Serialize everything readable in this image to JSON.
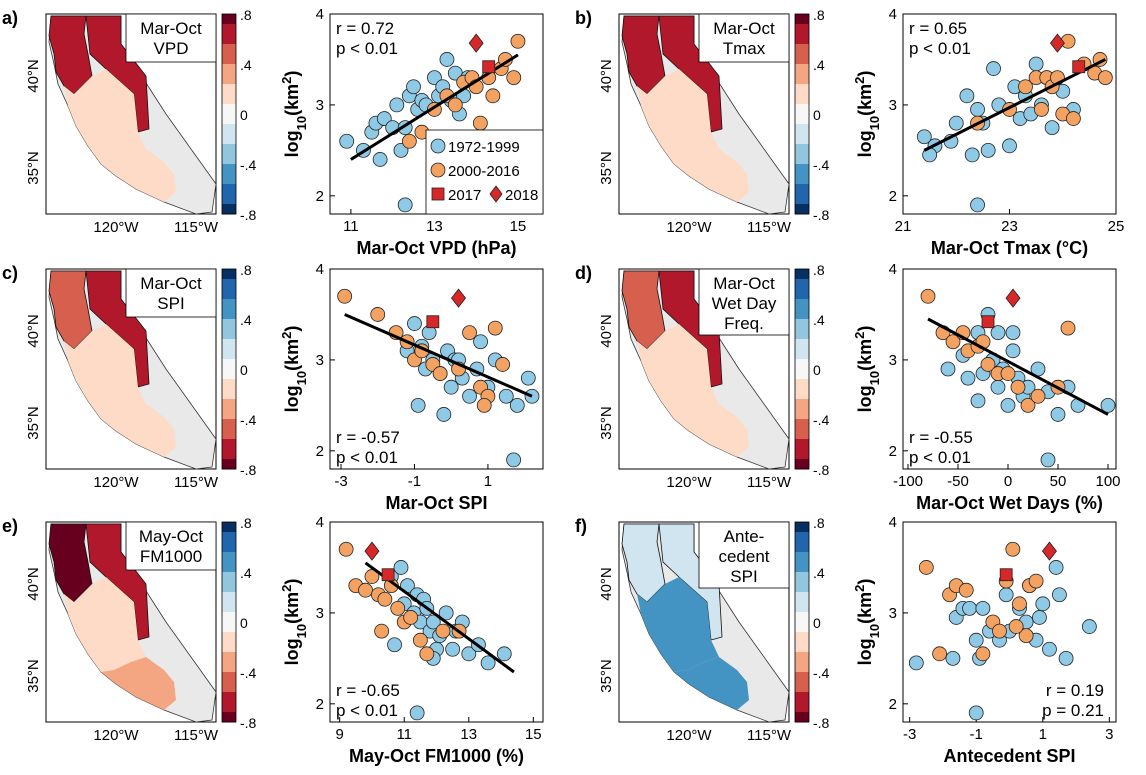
{
  "colorbar": {
    "tick_labels": [
      ".8",
      ".4",
      "0",
      "-.4",
      "-.8"
    ],
    "warm_positive": [
      "#67001f",
      "#b2182b",
      "#d6604d",
      "#f4a582",
      "#fddbc7",
      "#f7f7f7",
      "#d1e5f0",
      "#92c5de",
      "#4393c3",
      "#2166ac",
      "#053061"
    ]
  },
  "map_axes": {
    "x_ticks": [
      "120°W",
      "115°W"
    ],
    "y_ticks": [
      "40°N",
      "35°N"
    ]
  },
  "legend": {
    "entries": [
      {
        "label": "1972-1999",
        "marker": "circle",
        "color": "#8ecae6"
      },
      {
        "label": "2000-2016",
        "marker": "circle",
        "color": "#f4a261"
      },
      {
        "label": "2017",
        "marker": "square",
        "color": "#d62828"
      },
      {
        "label": "2018",
        "marker": "diamond",
        "color": "#d62828"
      }
    ]
  },
  "chart_data": [
    {
      "panel": "a)",
      "type": "scatter",
      "colorbar_positive": "warm",
      "map_title": [
        "Mar-Oct",
        "VPD"
      ],
      "map_corr": {
        "north_coast": 0.62,
        "sierra": 0.72,
        "central_coast": 0.22,
        "south_coast": 0.2
      },
      "xlabel": "Mar-Oct VPD (hPa)",
      "ylabel": "log10(km2)",
      "xlim": [
        10.5,
        15.6
      ],
      "ylim": [
        1.8,
        4.0
      ],
      "xticks": [
        11,
        13,
        15
      ],
      "yticks": [
        2,
        3,
        4
      ],
      "stats": [
        "r = 0.72",
        "p < 0.01"
      ],
      "stats_pos": "top-left",
      "show_legend": true,
      "fit": [
        [
          11.0,
          2.4
        ],
        [
          15.0,
          3.55
        ]
      ],
      "series1": [
        [
          10.9,
          2.6
        ],
        [
          11.3,
          2.5
        ],
        [
          11.5,
          2.7
        ],
        [
          11.6,
          2.8
        ],
        [
          11.8,
          2.85
        ],
        [
          12.0,
          2.75
        ],
        [
          12.1,
          3.0
        ],
        [
          12.2,
          2.5
        ],
        [
          12.3,
          2.75
        ],
        [
          12.4,
          3.1
        ],
        [
          12.5,
          3.2
        ],
        [
          12.6,
          2.95
        ],
        [
          12.7,
          3.05
        ],
        [
          12.8,
          3.0
        ],
        [
          13.0,
          3.3
        ],
        [
          13.1,
          3.1
        ],
        [
          13.2,
          3.2
        ],
        [
          13.3,
          3.5
        ],
        [
          13.4,
          3.05
        ],
        [
          13.5,
          3.35
        ],
        [
          13.6,
          2.9
        ],
        [
          13.7,
          3.1
        ],
        [
          13.8,
          3.3
        ],
        [
          12.3,
          1.9
        ],
        [
          11.7,
          2.4
        ]
      ],
      "series2": [
        [
          12.4,
          2.6
        ],
        [
          12.7,
          2.7
        ],
        [
          13.0,
          2.95
        ],
        [
          13.3,
          3.1
        ],
        [
          13.5,
          3.0
        ],
        [
          13.7,
          3.25
        ],
        [
          13.9,
          3.3
        ],
        [
          14.0,
          3.2
        ],
        [
          14.1,
          2.8
        ],
        [
          14.3,
          3.3
        ],
        [
          14.4,
          3.1
        ],
        [
          14.6,
          3.4
        ],
        [
          14.7,
          3.5
        ],
        [
          15.0,
          3.7
        ],
        [
          14.9,
          3.3
        ]
      ],
      "red2017": [
        14.3,
        3.42
      ],
      "red2018": [
        14.0,
        3.68
      ]
    },
    {
      "panel": "b)",
      "type": "scatter",
      "colorbar_positive": "warm",
      "map_title": [
        "Mar-Oct",
        "Tmax"
      ],
      "map_corr": {
        "north_coast": 0.58,
        "sierra": 0.68,
        "central_coast": 0.22,
        "south_coast": 0.2
      },
      "xlabel": "Mar-Oct Tmax (°C)",
      "ylabel": "log10(km2)",
      "xlim": [
        21,
        25
      ],
      "ylim": [
        1.8,
        4.0
      ],
      "xticks": [
        21,
        23,
        25
      ],
      "yticks": [
        2,
        3,
        4
      ],
      "stats": [
        "r = 0.65",
        "p < 0.01"
      ],
      "stats_pos": "top-left",
      "show_legend": false,
      "fit": [
        [
          21.4,
          2.5
        ],
        [
          24.8,
          3.5
        ]
      ],
      "series1": [
        [
          21.4,
          2.65
        ],
        [
          21.6,
          2.55
        ],
        [
          21.9,
          2.6
        ],
        [
          22.0,
          2.8
        ],
        [
          22.2,
          3.1
        ],
        [
          22.3,
          2.45
        ],
        [
          22.4,
          2.95
        ],
        [
          22.5,
          2.8
        ],
        [
          22.6,
          2.5
        ],
        [
          22.7,
          3.4
        ],
        [
          22.8,
          3.0
        ],
        [
          23.0,
          2.55
        ],
        [
          23.1,
          3.2
        ],
        [
          23.2,
          2.85
        ],
        [
          23.3,
          3.1
        ],
        [
          23.4,
          2.9
        ],
        [
          23.5,
          3.45
        ],
        [
          23.6,
          3.0
        ],
        [
          23.7,
          3.3
        ],
        [
          23.8,
          2.75
        ],
        [
          24.0,
          3.15
        ],
        [
          24.2,
          2.95
        ],
        [
          22.4,
          1.9
        ],
        [
          21.5,
          2.45
        ]
      ],
      "series2": [
        [
          22.4,
          2.8
        ],
        [
          23.0,
          2.95
        ],
        [
          23.3,
          3.2
        ],
        [
          23.5,
          3.3
        ],
        [
          23.6,
          2.95
        ],
        [
          23.7,
          3.3
        ],
        [
          23.8,
          3.2
        ],
        [
          23.9,
          3.3
        ],
        [
          24.0,
          2.9
        ],
        [
          24.1,
          3.7
        ],
        [
          24.2,
          2.85
        ],
        [
          24.4,
          3.45
        ],
        [
          24.6,
          3.35
        ],
        [
          24.7,
          3.5
        ],
        [
          24.8,
          3.3
        ]
      ],
      "red2017": [
        24.3,
        3.42
      ],
      "red2018": [
        23.9,
        3.68
      ]
    },
    {
      "panel": "c)",
      "type": "scatter",
      "colorbar_positive": "cool",
      "map_title": [
        "Mar-Oct",
        "SPI"
      ],
      "map_corr": {
        "north_coast": -0.5,
        "sierra": -0.6,
        "central_coast": -0.2,
        "south_coast": -0.2
      },
      "xlabel": "Mar-Oct SPI",
      "ylabel": "log10(km2)",
      "xlim": [
        -3.3,
        2.5
      ],
      "ylim": [
        1.8,
        4.0
      ],
      "xticks": [
        -3,
        -1,
        1,
        3
      ],
      "yticks": [
        2,
        3,
        4
      ],
      "stats": [
        "r = -0.57",
        "p < 0.01"
      ],
      "stats_pos": "bottom-left",
      "show_legend": false,
      "fit": [
        [
          -2.9,
          3.5
        ],
        [
          2.2,
          2.6
        ]
      ],
      "series1": [
        [
          -1.2,
          3.1
        ],
        [
          -1.0,
          3.4
        ],
        [
          -0.8,
          3.15
        ],
        [
          -0.7,
          2.9
        ],
        [
          -0.6,
          3.3
        ],
        [
          -0.5,
          3.0
        ],
        [
          -0.3,
          2.85
        ],
        [
          -0.1,
          3.1
        ],
        [
          0.0,
          2.7
        ],
        [
          0.1,
          3.0
        ],
        [
          0.3,
          2.8
        ],
        [
          0.5,
          2.6
        ],
        [
          0.7,
          2.9
        ],
        [
          0.8,
          3.2
        ],
        [
          1.0,
          2.7
        ],
        [
          1.2,
          3.0
        ],
        [
          1.5,
          2.6
        ],
        [
          1.8,
          2.5
        ],
        [
          2.1,
          2.8
        ],
        [
          2.2,
          2.6
        ],
        [
          -0.9,
          2.5
        ],
        [
          1.7,
          1.9
        ],
        [
          0.2,
          3.0
        ],
        [
          -0.2,
          2.4
        ]
      ],
      "series2": [
        [
          -2.9,
          3.7
        ],
        [
          -2.0,
          3.5
        ],
        [
          -1.5,
          3.3
        ],
        [
          -1.2,
          3.2
        ],
        [
          -1.0,
          3.0
        ],
        [
          -0.8,
          3.1
        ],
        [
          -0.5,
          2.95
        ],
        [
          -0.3,
          2.85
        ],
        [
          0.2,
          2.9
        ],
        [
          0.5,
          3.3
        ],
        [
          0.8,
          2.7
        ],
        [
          1.0,
          2.6
        ],
        [
          1.2,
          3.35
        ],
        [
          1.4,
          2.95
        ],
        [
          0.9,
          2.5
        ]
      ],
      "red2017": [
        -0.5,
        3.42
      ],
      "red2018": [
        0.2,
        3.68
      ]
    },
    {
      "panel": "d)",
      "type": "scatter",
      "colorbar_positive": "cool",
      "map_title": [
        "Mar-Oct",
        "Wet Day",
        "Freq."
      ],
      "map_corr": {
        "north_coast": -0.55,
        "sierra": -0.62,
        "central_coast": -0.2,
        "south_coast": -0.2
      },
      "xlabel": "Mar-Oct Wet Days (%)",
      "ylabel": "log10(km2)",
      "xlim": [
        -105,
        108
      ],
      "ylim": [
        1.8,
        4.0
      ],
      "xticks": [
        -100,
        -50,
        0,
        50,
        100
      ],
      "yticks": [
        2,
        3,
        4
      ],
      "stats": [
        "r = -0.55",
        "p < 0.01"
      ],
      "stats_pos": "bottom-left",
      "show_legend": false,
      "fit": [
        [
          -80,
          3.45
        ],
        [
          100,
          2.4
        ]
      ],
      "series1": [
        [
          -60,
          2.9
        ],
        [
          -45,
          3.05
        ],
        [
          -40,
          2.8
        ],
        [
          -30,
          3.3
        ],
        [
          -25,
          2.85
        ],
        [
          -20,
          3.5
        ],
        [
          -15,
          3.0
        ],
        [
          -10,
          3.3
        ],
        [
          -5,
          2.9
        ],
        [
          0,
          2.5
        ],
        [
          5,
          3.1
        ],
        [
          10,
          2.8
        ],
        [
          15,
          2.6
        ],
        [
          20,
          2.7
        ],
        [
          30,
          2.9
        ],
        [
          40,
          2.65
        ],
        [
          50,
          2.4
        ],
        [
          60,
          2.7
        ],
        [
          70,
          2.5
        ],
        [
          100,
          2.5
        ],
        [
          40,
          1.9
        ],
        [
          -30,
          2.55
        ],
        [
          5,
          3.3
        ],
        [
          -10,
          2.7
        ]
      ],
      "series2": [
        [
          -80,
          3.7
        ],
        [
          -65,
          3.3
        ],
        [
          -55,
          3.2
        ],
        [
          -45,
          3.3
        ],
        [
          -40,
          3.1
        ],
        [
          -30,
          3.15
        ],
        [
          -25,
          3.2
        ],
        [
          -20,
          2.95
        ],
        [
          -10,
          2.85
        ],
        [
          0,
          2.85
        ],
        [
          10,
          2.7
        ],
        [
          20,
          2.5
        ],
        [
          30,
          2.6
        ],
        [
          50,
          2.7
        ],
        [
          60,
          3.35
        ]
      ],
      "red2017": [
        -20,
        3.42
      ],
      "red2018": [
        5,
        3.68
      ]
    },
    {
      "panel": "e)",
      "type": "scatter",
      "colorbar_positive": "cool",
      "map_title": [
        "May-Oct",
        "FM1000"
      ],
      "map_corr": {
        "north_coast": -0.72,
        "sierra": -0.6,
        "central_coast": -0.2,
        "south_coast": -0.25
      },
      "xlabel": "May-Oct FM1000 (%)",
      "ylabel": "log10(km2)",
      "xlim": [
        8.7,
        15.3
      ],
      "ylim": [
        1.8,
        4.0
      ],
      "xticks": [
        9,
        11,
        13,
        15
      ],
      "yticks": [
        2,
        3,
        4
      ],
      "stats": [
        "r = -0.65",
        "p < 0.01"
      ],
      "stats_pos": "bottom-left",
      "show_legend": false,
      "fit": [
        [
          9.8,
          3.55
        ],
        [
          14.4,
          2.35
        ]
      ],
      "series1": [
        [
          10.6,
          3.4
        ],
        [
          10.9,
          3.5
        ],
        [
          11.0,
          3.1
        ],
        [
          11.1,
          3.3
        ],
        [
          11.3,
          3.0
        ],
        [
          11.4,
          3.2
        ],
        [
          11.5,
          2.9
        ],
        [
          11.6,
          3.15
        ],
        [
          11.7,
          3.05
        ],
        [
          11.8,
          2.8
        ],
        [
          11.9,
          2.9
        ],
        [
          12.0,
          2.6
        ],
        [
          12.1,
          2.75
        ],
        [
          12.3,
          3.0
        ],
        [
          12.5,
          2.6
        ],
        [
          12.6,
          2.8
        ],
        [
          12.8,
          2.9
        ],
        [
          13.0,
          2.55
        ],
        [
          13.3,
          2.65
        ],
        [
          13.6,
          2.45
        ],
        [
          14.1,
          2.55
        ],
        [
          11.4,
          1.9
        ],
        [
          10.7,
          2.65
        ],
        [
          11.9,
          2.5
        ]
      ],
      "series2": [
        [
          9.2,
          3.7
        ],
        [
          9.5,
          3.3
        ],
        [
          9.8,
          3.25
        ],
        [
          10.0,
          3.4
        ],
        [
          10.2,
          3.2
        ],
        [
          10.4,
          3.15
        ],
        [
          10.6,
          3.3
        ],
        [
          10.8,
          3.05
        ],
        [
          11.0,
          2.9
        ],
        [
          11.2,
          2.95
        ],
        [
          11.5,
          2.7
        ],
        [
          11.7,
          2.55
        ],
        [
          12.2,
          2.8
        ],
        [
          12.7,
          2.8
        ],
        [
          10.3,
          2.8
        ]
      ],
      "red2017": [
        10.5,
        3.42
      ],
      "red2018": [
        10.0,
        3.68
      ]
    },
    {
      "panel": "f)",
      "type": "scatter",
      "colorbar_positive": "cool",
      "map_title": [
        "Ante-",
        "cedent",
        "SPI"
      ],
      "map_corr": {
        "north_coast": 0.1,
        "sierra": 0.1,
        "central_coast": 0.45,
        "south_coast": 0.5
      },
      "xlabel": "Antecedent SPI",
      "ylabel": "log10(km2)",
      "xlim": [
        -3.2,
        3.2
      ],
      "ylim": [
        1.8,
        4.0
      ],
      "xticks": [
        -3,
        -1,
        1,
        3
      ],
      "yticks": [
        2,
        3,
        4
      ],
      "stats": [
        "r = 0.19",
        "p = 0.21"
      ],
      "stats_pos": "bottom-right",
      "show_legend": false,
      "fit": null,
      "series1": [
        [
          -2.8,
          2.45
        ],
        [
          -1.7,
          2.5
        ],
        [
          -1.6,
          2.95
        ],
        [
          -1.4,
          3.05
        ],
        [
          -1.2,
          3.05
        ],
        [
          -1.0,
          2.7
        ],
        [
          -0.9,
          2.5
        ],
        [
          -0.8,
          3.05
        ],
        [
          -0.6,
          2.8
        ],
        [
          -0.3,
          2.7
        ],
        [
          -0.1,
          3.2
        ],
        [
          0.0,
          2.8
        ],
        [
          0.3,
          3.05
        ],
        [
          0.5,
          2.9
        ],
        [
          0.6,
          3.3
        ],
        [
          0.8,
          2.7
        ],
        [
          1.0,
          3.1
        ],
        [
          1.2,
          2.6
        ],
        [
          1.4,
          3.5
        ],
        [
          1.5,
          3.2
        ],
        [
          1.7,
          2.5
        ],
        [
          2.4,
          2.85
        ],
        [
          -1.0,
          1.9
        ],
        [
          0.9,
          2.95
        ]
      ],
      "series2": [
        [
          -2.5,
          3.5
        ],
        [
          -1.8,
          3.2
        ],
        [
          -1.6,
          3.3
        ],
        [
          -1.3,
          3.25
        ],
        [
          -0.8,
          2.55
        ],
        [
          -0.5,
          2.9
        ],
        [
          -0.3,
          2.8
        ],
        [
          -0.1,
          3.35
        ],
        [
          0.1,
          3.7
        ],
        [
          0.3,
          3.1
        ],
        [
          0.5,
          2.75
        ],
        [
          0.6,
          3.3
        ],
        [
          0.8,
          3.35
        ],
        [
          -2.1,
          2.55
        ],
        [
          0.2,
          2.85
        ]
      ],
      "red2017": [
        -0.1,
        3.42
      ],
      "red2018": [
        1.2,
        3.68
      ]
    }
  ]
}
